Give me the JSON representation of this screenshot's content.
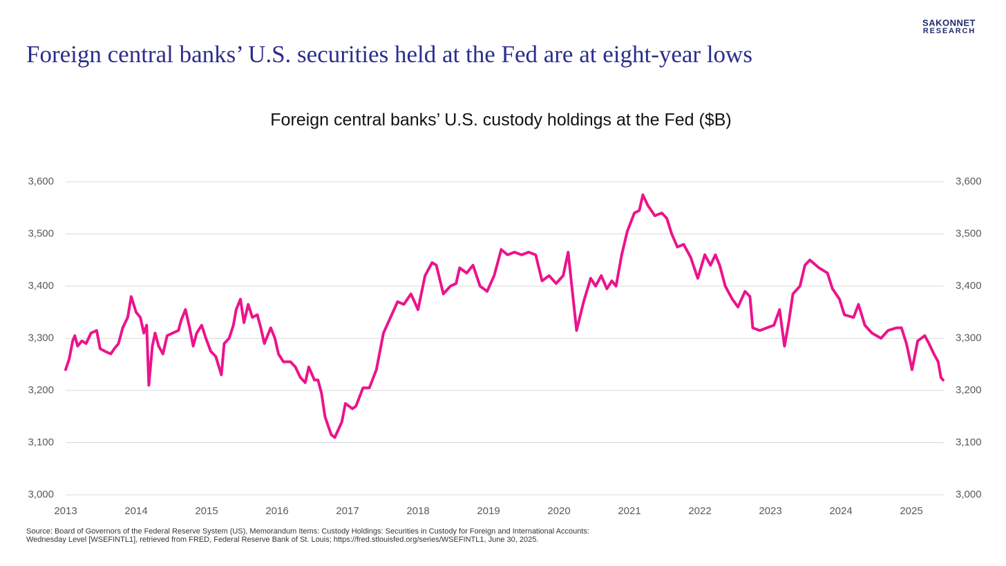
{
  "brand": [
    "SAKONNET",
    "RESEARCH"
  ],
  "headline": "Foreign central banks’ U.S. securities held at the Fed are at eight-year lows",
  "source": [
    "Source: Board of Governors of the Federal Reserve System (US), Memorandum Items: Custody Holdings: Securities in Custody for Foreign and International Accounts:",
    "Wednesday Level [WSEFINTL1], retrieved from FRED, Federal Reserve Bank of St. Louis; https://fred.stlouisfed.org/series/WSEFINTL1, June 30, 2025."
  ],
  "chart_data": {
    "type": "line",
    "title": "Foreign central banks’ U.S. custody holdings at the Fed ($B)",
    "color": "#ec138c",
    "grid": true,
    "x": [
      2013.0,
      2013.05,
      2013.1,
      2013.13,
      2013.17,
      2013.23,
      2013.29,
      2013.36,
      2013.44,
      2013.49,
      2013.56,
      2013.64,
      2013.69,
      2013.75,
      2013.81,
      2013.88,
      2013.93,
      2014.0,
      2014.06,
      2014.11,
      2014.15,
      2014.18,
      2014.23,
      2014.27,
      2014.32,
      2014.38,
      2014.44,
      2014.52,
      2014.6,
      2014.64,
      2014.7,
      2014.76,
      2014.81,
      2014.86,
      2014.93,
      2014.99,
      2015.06,
      2015.13,
      2015.21,
      2015.25,
      2015.32,
      2015.38,
      2015.42,
      2015.48,
      2015.53,
      2015.59,
      2015.65,
      2015.72,
      2015.77,
      2015.82,
      2015.91,
      2015.97,
      2016.02,
      2016.09,
      2016.19,
      2016.26,
      2016.33,
      2016.4,
      2016.45,
      2016.53,
      2016.58,
      2016.63,
      2016.68,
      2016.73,
      2016.77,
      2016.82,
      2016.92,
      2016.97,
      2017.07,
      2017.12,
      2017.22,
      2017.31,
      2017.41,
      2017.51,
      2017.61,
      2017.71,
      2017.8,
      2017.9,
      2018.0,
      2018.1,
      2018.2,
      2018.26,
      2018.36,
      2018.46,
      2018.54,
      2018.59,
      2018.69,
      2018.78,
      2018.88,
      2018.98,
      2019.08,
      2019.18,
      2019.27,
      2019.37,
      2019.47,
      2019.57,
      2019.67,
      2019.76,
      2019.86,
      2019.96,
      2020.06,
      2020.13,
      2020.19,
      2020.25,
      2020.35,
      2020.45,
      2020.52,
      2020.6,
      2020.68,
      2020.75,
      2020.81,
      2020.89,
      2020.97,
      2021.07,
      2021.14,
      2021.19,
      2021.26,
      2021.36,
      2021.46,
      2021.53,
      2021.6,
      2021.68,
      2021.77,
      2021.87,
      2021.97,
      2022.07,
      2022.15,
      2022.22,
      2022.28,
      2022.36,
      2022.46,
      2022.54,
      2022.64,
      2022.71,
      2022.75,
      2022.85,
      2022.95,
      2023.05,
      2023.13,
      2023.2,
      2023.26,
      2023.32,
      2023.42,
      2023.49,
      2023.56,
      2023.69,
      2023.81,
      2023.88,
      2023.98,
      2024.05,
      2024.18,
      2024.25,
      2024.34,
      2024.44,
      2024.57,
      2024.67,
      2024.79,
      2024.86,
      2024.93,
      2025.01,
      2025.09,
      2025.19,
      2025.25,
      2025.32,
      2025.38,
      2025.42,
      2025.45
    ],
    "values": [
      3240,
      3260,
      3295,
      3305,
      3285,
      3295,
      3290,
      3310,
      3315,
      3280,
      3275,
      3270,
      3280,
      3290,
      3320,
      3340,
      3380,
      3350,
      3340,
      3310,
      3325,
      3210,
      3285,
      3310,
      3285,
      3270,
      3305,
      3310,
      3315,
      3335,
      3355,
      3320,
      3285,
      3310,
      3325,
      3300,
      3275,
      3265,
      3230,
      3290,
      3300,
      3325,
      3355,
      3375,
      3330,
      3365,
      3340,
      3345,
      3320,
      3290,
      3320,
      3300,
      3270,
      3255,
      3255,
      3245,
      3225,
      3215,
      3245,
      3220,
      3220,
      3195,
      3150,
      3130,
      3115,
      3110,
      3140,
      3175,
      3165,
      3170,
      3205,
      3205,
      3240,
      3310,
      3340,
      3370,
      3365,
      3385,
      3355,
      3420,
      3445,
      3440,
      3385,
      3400,
      3405,
      3435,
      3425,
      3440,
      3400,
      3390,
      3420,
      3470,
      3460,
      3465,
      3460,
      3465,
      3460,
      3410,
      3420,
      3405,
      3420,
      3465,
      3390,
      3315,
      3370,
      3415,
      3400,
      3420,
      3395,
      3410,
      3400,
      3460,
      3505,
      3540,
      3545,
      3575,
      3555,
      3535,
      3540,
      3530,
      3500,
      3475,
      3480,
      3455,
      3415,
      3460,
      3440,
      3460,
      3440,
      3400,
      3375,
      3360,
      3390,
      3380,
      3320,
      3315,
      3320,
      3325,
      3355,
      3285,
      3330,
      3385,
      3400,
      3440,
      3450,
      3435,
      3425,
      3395,
      3375,
      3345,
      3340,
      3365,
      3325,
      3310,
      3300,
      3315,
      3320,
      3320,
      3290,
      3240,
      3295,
      3305,
      3290,
      3270,
      3255,
      3225,
      3220
    ],
    "xlim": [
      2013,
      2025.5
    ],
    "xticks": [
      2013,
      2014,
      2015,
      2016,
      2017,
      2018,
      2019,
      2020,
      2021,
      2022,
      2023,
      2024,
      2025
    ],
    "ylim": [
      3000,
      3600
    ],
    "yticks": [
      {
        "value": 3000,
        "label": "3,000"
      },
      {
        "value": 3100,
        "label": "3,100"
      },
      {
        "value": 3200,
        "label": "3,200"
      },
      {
        "value": 3300,
        "label": "3,300"
      },
      {
        "value": 3400,
        "label": "3,400"
      },
      {
        "value": 3500,
        "label": "3,500"
      },
      {
        "value": 3600,
        "label": "3,600"
      }
    ],
    "y2lim": [
      3000,
      3600
    ],
    "y2ticks": [
      {
        "value": 3000,
        "label": "3,000"
      },
      {
        "value": 3100,
        "label": "3,100"
      },
      {
        "value": 3200,
        "label": "3,200"
      },
      {
        "value": 3300,
        "label": "3,300"
      },
      {
        "value": 3400,
        "label": "3,400"
      },
      {
        "value": 3500,
        "label": "3,500"
      },
      {
        "value": 3600,
        "label": "3,600"
      }
    ]
  }
}
